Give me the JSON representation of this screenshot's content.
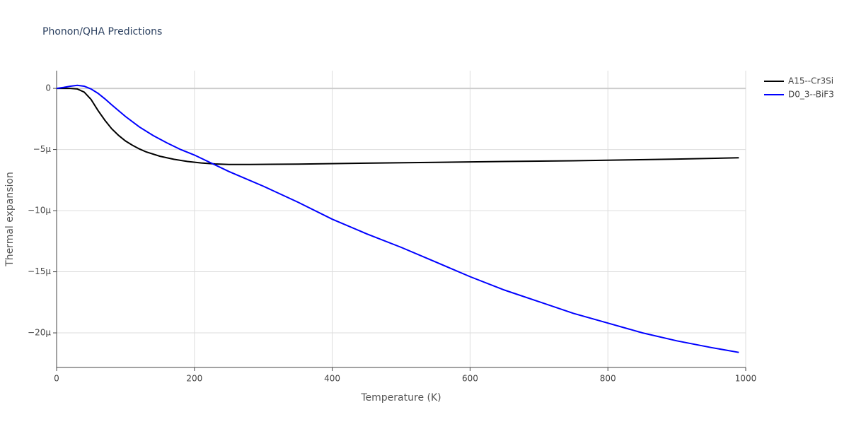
{
  "chart_data": {
    "type": "line",
    "title": "Phonon/QHA Predictions",
    "x_label": "Temperature (K)",
    "y_label": "Thermal expansion",
    "xlim": [
      0,
      1000
    ],
    "xticks": [
      0,
      200,
      400,
      600,
      800,
      1000
    ],
    "ylim": [
      -2.283e-05,
      1.45e-06
    ],
    "yticks": [
      {
        "value": 0,
        "label": "0"
      },
      {
        "value": -5e-06,
        "label": "−5μ"
      },
      {
        "value": -1e-05,
        "label": "−10μ"
      },
      {
        "value": -1.5e-05,
        "label": "−15μ"
      },
      {
        "value": -2e-05,
        "label": "−20μ"
      }
    ],
    "grid": true,
    "legend": "right",
    "series": [
      {
        "name": "A15--Cr3Si",
        "color": "#000000",
        "x": [
          0,
          10,
          20,
          30,
          40,
          50,
          60,
          70,
          80,
          90,
          100,
          110,
          120,
          130,
          150,
          170,
          190,
          210,
          230,
          250,
          280,
          350,
          450,
          550,
          650,
          750,
          830,
          900,
          990
        ],
        "values": [
          0,
          0,
          0,
          -5e-08,
          -3e-07,
          -9e-07,
          -1.8e-06,
          -2.6e-06,
          -3.3e-06,
          -3.85e-06,
          -4.3e-06,
          -4.65e-06,
          -4.95e-06,
          -5.2e-06,
          -5.55e-06,
          -5.8e-06,
          -5.98e-06,
          -6.1e-06,
          -6.18e-06,
          -6.22e-06,
          -6.22e-06,
          -6.2e-06,
          -6.12e-06,
          -6.05e-06,
          -5.98e-06,
          -5.92e-06,
          -5.85e-06,
          -5.78e-06,
          -5.68e-06
        ]
      },
      {
        "name": "D0_3--BiF3",
        "color": "#0000ff",
        "x": [
          0,
          10,
          20,
          30,
          40,
          50,
          60,
          70,
          80,
          100,
          120,
          140,
          160,
          180,
          200,
          250,
          300,
          350,
          400,
          450,
          500,
          550,
          600,
          650,
          700,
          750,
          800,
          850,
          900,
          950,
          990
        ],
        "values": [
          0,
          8e-08,
          1.8e-07,
          2.5e-07,
          1.8e-07,
          -5e-08,
          -4e-07,
          -8.5e-07,
          -1.35e-06,
          -2.3e-06,
          -3.15e-06,
          -3.85e-06,
          -4.45e-06,
          -5e-06,
          -5.45e-06,
          -6.8e-06,
          -8e-06,
          -9.3e-06,
          -1.07e-05,
          -1.19e-05,
          -1.3e-05,
          -1.42e-05,
          -1.54e-05,
          -1.65e-05,
          -1.745e-05,
          -1.84e-05,
          -1.92e-05,
          -2e-05,
          -2.065e-05,
          -2.12e-05,
          -2.16e-05
        ]
      }
    ]
  }
}
